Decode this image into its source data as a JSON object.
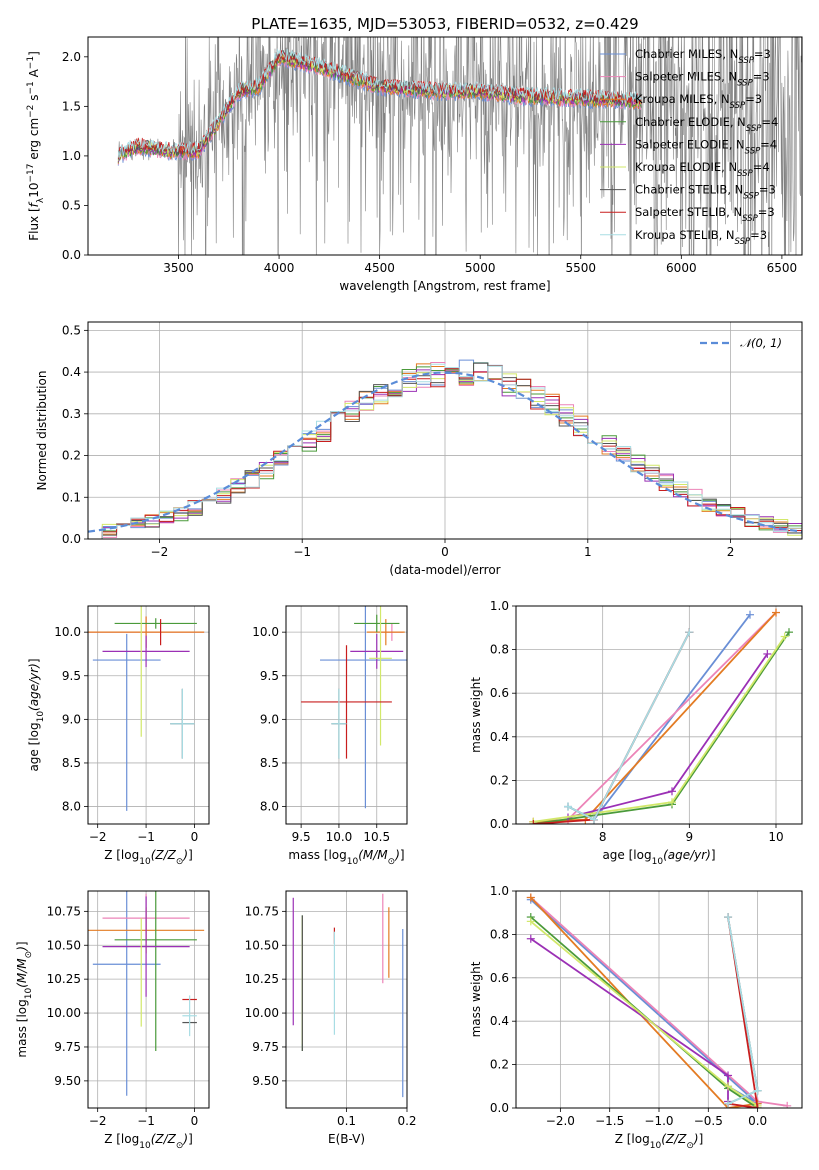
{
  "figure_title": "PLATE=1635, MJD=53053, FIBERID=0532, z=0.429",
  "series": [
    {
      "name": "Chabrier MILES",
      "nssp": "3",
      "color": "#6a8fd6"
    },
    {
      "name": "Salpeter MILES",
      "nssp": "3",
      "color": "#ec84b8"
    },
    {
      "name": "Kroupa MILES",
      "nssp": "3",
      "color": "#e37b23"
    },
    {
      "name": "Chabrier ELODIE",
      "nssp": "4",
      "color": "#4a9a3a"
    },
    {
      "name": "Salpeter ELODIE",
      "nssp": "4",
      "color": "#9b30b5"
    },
    {
      "name": "Kroupa ELODIE",
      "nssp": "4",
      "color": "#d2e86a"
    },
    {
      "name": "Chabrier STELIB",
      "nssp": "3",
      "color": "#555555"
    },
    {
      "name": "Salpeter STELIB",
      "nssp": "3",
      "color": "#c81e1e"
    },
    {
      "name": "Kroupa STELIB",
      "nssp": "3",
      "color": "#a8dde4"
    }
  ],
  "chart_data": [
    {
      "id": "spectrum",
      "type": "line",
      "xlabel": "wavelength [Angstrom, rest frame]",
      "ylabel": "Flux [f_λ 10^-17 erg cm^-2 s^-1 A^-1]",
      "xlim": [
        3050,
        6600
      ],
      "ylim": [
        0,
        2.2
      ],
      "xticks": [
        3500,
        4000,
        4500,
        5000,
        5500,
        6000,
        6500
      ],
      "yticks": [
        0.0,
        0.5,
        1.0,
        1.5,
        2.0
      ],
      "data_color": "#808080",
      "data_x_range": [
        3200,
        6600
      ],
      "model_continuum_approx": [
        [
          3200,
          1.0
        ],
        [
          3300,
          1.1
        ],
        [
          3450,
          1.05
        ],
        [
          3600,
          1.05
        ],
        [
          3700,
          1.35
        ],
        [
          3800,
          1.65
        ],
        [
          3900,
          1.7
        ],
        [
          4000,
          2.0
        ],
        [
          4200,
          1.9
        ],
        [
          4500,
          1.7
        ],
        [
          4800,
          1.65
        ],
        [
          5000,
          1.65
        ],
        [
          5200,
          1.6
        ],
        [
          5500,
          1.58
        ],
        [
          5800,
          1.55
        ],
        [
          6000,
          1.52
        ]
      ],
      "grid": false,
      "legend": "upper-right"
    },
    {
      "id": "residual_hist",
      "type": "histogram",
      "xlabel": "(data-model)/error",
      "ylabel": "Normed distribution",
      "xlim": [
        -2.5,
        2.5
      ],
      "ylim": [
        0,
        0.52
      ],
      "xticks": [
        -2,
        -1,
        0,
        1,
        2
      ],
      "yticks": [
        0.0,
        0.1,
        0.2,
        0.3,
        0.4,
        0.5
      ],
      "bin_edges_start": -2.5,
      "bin_width": 0.1,
      "reference_curve": {
        "name": "N(0,1)",
        "style": "dashed",
        "color": "#5a8cd8"
      },
      "grid": true,
      "legend": "upper-right"
    },
    {
      "id": "age_vs_Z",
      "type": "errorbar",
      "xlabel": "Z [log10(Z/Z☉)]",
      "ylabel": "age [log10(age/yr)]",
      "xlim": [
        -2.2,
        0.3
      ],
      "ylim": [
        7.8,
        10.3
      ],
      "xticks": [
        -2,
        -1,
        0
      ],
      "yticks": [
        8.0,
        8.5,
        9.0,
        9.5,
        10.0
      ],
      "points": [
        {
          "s": 0,
          "x": -1.4,
          "y": 9.68,
          "xerr": 0.7,
          "yerr": 0.3,
          "ylow": 7.95
        },
        {
          "s": 1,
          "x": -1.0,
          "y": 10.0,
          "xerr": 1.2,
          "yerr": 0.18
        },
        {
          "s": 2,
          "x": -1.0,
          "y": 10.0,
          "xerr": 1.2,
          "yerr": 0.18
        },
        {
          "s": 3,
          "x": -0.8,
          "y": 10.1,
          "xerr": 0.85,
          "yerr": 0.06
        },
        {
          "s": 4,
          "x": -1.0,
          "y": 9.78,
          "xerr": 0.9,
          "yerr": 0.18
        },
        {
          "s": 5,
          "x": -1.1,
          "y": 9.8,
          "xerr": 0.0,
          "yerr": 1.0
        },
        {
          "s": 6,
          "x": -0.25,
          "y": 8.95,
          "xerr": 0.25,
          "yerr": 0.4
        },
        {
          "s": 7,
          "x": -0.7,
          "y": 10.0,
          "xerr": 0.0,
          "yerr": 0.15
        },
        {
          "s": 8,
          "x": -0.25,
          "y": 8.95,
          "xerr": 0.25,
          "yerr": 0.4
        }
      ]
    },
    {
      "id": "age_vs_mass",
      "type": "errorbar",
      "xlabel": "mass [log10(M/M☉)]",
      "ylabel": "",
      "xlim": [
        9.3,
        10.9
      ],
      "ylim": [
        7.8,
        10.3
      ],
      "xticks": [
        9.5,
        10.0,
        10.5
      ],
      "yticks": [
        8.0,
        8.5,
        9.0,
        9.5,
        10.0
      ],
      "points": [
        {
          "s": 0,
          "x": 10.35,
          "y": 9.68,
          "xerr": 0.6,
          "yerr": 1.7
        },
        {
          "s": 1,
          "x": 10.7,
          "y": 10.0,
          "xerr": 0.15,
          "yerr": 0.1
        },
        {
          "s": 2,
          "x": 10.62,
          "y": 10.0,
          "xerr": 0.25,
          "yerr": 0.15
        },
        {
          "s": 3,
          "x": 10.5,
          "y": 10.1,
          "xerr": 0.3,
          "yerr": 0.1
        },
        {
          "s": 4,
          "x": 10.5,
          "y": 9.78,
          "xerr": 0.35,
          "yerr": 0.2
        },
        {
          "s": 5,
          "x": 10.55,
          "y": 9.7,
          "xerr": 0.15,
          "yerr": 1.0
        },
        {
          "s": 6,
          "x": 10.0,
          "y": 8.95,
          "xerr": 0.1,
          "yerr": 0.4
        },
        {
          "s": 7,
          "x": 10.1,
          "y": 9.2,
          "xerr": 0.6,
          "yerr": 0.65
        },
        {
          "s": 8,
          "x": 10.0,
          "y": 8.95,
          "xerr": 0.1,
          "yerr": 0.4
        }
      ]
    },
    {
      "id": "massweight_vs_age",
      "type": "line",
      "xlabel": "age [log10(age/yr)]",
      "ylabel": "mass weight",
      "xlim": [
        7.0,
        10.3
      ],
      "ylim": [
        0,
        1.0
      ],
      "xticks": [
        8,
        9,
        10
      ],
      "yticks": [
        0.0,
        0.2,
        0.4,
        0.6,
        0.8,
        1.0
      ],
      "lines": [
        {
          "s": 0,
          "x": [
            7.6,
            7.9,
            9.7
          ],
          "y": [
            0.08,
            0.02,
            0.96
          ]
        },
        {
          "s": 1,
          "x": [
            7.2,
            7.6,
            10.0
          ],
          "y": [
            0.01,
            0.02,
            0.97
          ]
        },
        {
          "s": 2,
          "x": [
            7.2,
            7.8,
            10.0
          ],
          "y": [
            0.01,
            0.02,
            0.97
          ]
        },
        {
          "s": 3,
          "x": [
            7.2,
            8.8,
            10.15
          ],
          "y": [
            0.0,
            0.09,
            0.88
          ]
        },
        {
          "s": 4,
          "x": [
            7.6,
            8.8,
            9.9
          ],
          "y": [
            0.03,
            0.15,
            0.78
          ]
        },
        {
          "s": 5,
          "x": [
            7.2,
            8.8,
            10.1
          ],
          "y": [
            0.01,
            0.1,
            0.86
          ]
        },
        {
          "s": 6,
          "x": [
            7.6,
            7.9,
            9.0
          ],
          "y": [
            0.08,
            0.02,
            0.88
          ]
        },
        {
          "s": 7,
          "x": [
            7.2,
            7.9,
            9.0
          ],
          "y": [
            0.0,
            0.02,
            0.88
          ]
        },
        {
          "s": 8,
          "x": [
            7.6,
            7.9,
            9.0
          ],
          "y": [
            0.08,
            0.02,
            0.88
          ]
        }
      ]
    },
    {
      "id": "mass_vs_Z",
      "type": "errorbar",
      "xlabel": "Z [log10(Z/Z☉)]",
      "ylabel": "mass [log10(M/M☉)]",
      "xlim": [
        -2.2,
        0.3
      ],
      "ylim": [
        9.3,
        10.9
      ],
      "xticks": [
        -2,
        -1,
        0
      ],
      "yticks": [
        9.5,
        9.75,
        10.0,
        10.25,
        10.5,
        10.75
      ],
      "points": [
        {
          "s": 0,
          "x": -1.4,
          "y": 10.36,
          "xerr": 0.7,
          "yerr": 0.97
        },
        {
          "s": 1,
          "x": -1.0,
          "y": 10.7,
          "xerr": 0.9,
          "yerr": 0.18
        },
        {
          "s": 2,
          "x": -1.0,
          "y": 10.61,
          "xerr": 1.2,
          "yerr": 0.17
        },
        {
          "s": 3,
          "x": -0.8,
          "y": 10.54,
          "xerr": 0.85,
          "yerr": 0.82
        },
        {
          "s": 4,
          "x": -1.0,
          "y": 10.49,
          "xerr": 0.9,
          "yerr": 0.37
        },
        {
          "s": 5,
          "x": -1.1,
          "y": 10.3,
          "xerr": 0.0,
          "yerr": 0.4
        },
        {
          "s": 6,
          "x": -0.1,
          "y": 9.93,
          "xerr": 0.15,
          "yerr": 0.0
        },
        {
          "s": 7,
          "x": -0.1,
          "y": 10.1,
          "xerr": 0.15,
          "yerr": 0.0
        },
        {
          "s": 8,
          "x": -0.1,
          "y": 9.98,
          "xerr": 0.15,
          "yerr": 0.15
        }
      ]
    },
    {
      "id": "mass_vs_EBV",
      "type": "errorbar",
      "xlabel": "E(B-V)",
      "ylabel": "",
      "xlim": [
        0.0,
        0.2
      ],
      "ylim": [
        9.3,
        10.9
      ],
      "xticks": [
        0.1,
        0.2
      ],
      "yticks": [
        9.5,
        9.75,
        10.0,
        10.25,
        10.5,
        10.75
      ],
      "points": [
        {
          "s": 0,
          "x": 0.193,
          "y": 10.0,
          "xerr": 0,
          "yerr": 0.62
        },
        {
          "s": 1,
          "x": 0.16,
          "y": 10.55,
          "xerr": 0,
          "yerr": 0.33
        },
        {
          "s": 2,
          "x": 0.17,
          "y": 10.52,
          "xerr": 0,
          "yerr": 0.26
        },
        {
          "s": 3,
          "x": 0.027,
          "y": 10.22,
          "xerr": 0,
          "yerr": 0.5
        },
        {
          "s": 4,
          "x": 0.012,
          "y": 10.38,
          "xerr": 0,
          "yerr": 0.47
        },
        {
          "s": 5,
          "x": 0.027,
          "y": 10.24,
          "xerr": 0,
          "yerr": 0.47
        },
        {
          "s": 6,
          "x": 0.027,
          "y": 10.22,
          "xerr": 0,
          "yerr": 0.5
        },
        {
          "s": 7,
          "x": 0.08,
          "y": 10.57,
          "xerr": 0,
          "yerr": 0.06
        },
        {
          "s": 8,
          "x": 0.08,
          "y": 10.22,
          "xerr": 0,
          "yerr": 0.38
        }
      ]
    },
    {
      "id": "massweight_vs_Z",
      "type": "line",
      "xlabel": "Z [log10(Z/Z☉)]",
      "ylabel": "mass weight",
      "xlim": [
        -2.45,
        0.45
      ],
      "ylim": [
        0,
        1.0
      ],
      "xticks": [
        -2.0,
        -1.5,
        -1.0,
        -0.5,
        0.0
      ],
      "yticks": [
        0.0,
        0.2,
        0.4,
        0.6,
        0.8,
        1.0
      ],
      "lines": [
        {
          "s": 0,
          "x": [
            -2.3,
            0.0,
            -0.3
          ],
          "y": [
            0.96,
            0.02,
            0.1
          ]
        },
        {
          "s": 1,
          "x": [
            -2.3,
            0.0,
            0.3
          ],
          "y": [
            0.97,
            0.03,
            0.01
          ]
        },
        {
          "s": 2,
          "x": [
            -2.3,
            -0.3,
            0.0
          ],
          "y": [
            0.97,
            0.0,
            0.02
          ]
        },
        {
          "s": 3,
          "x": [
            -2.3,
            -0.3,
            0.0
          ],
          "y": [
            0.88,
            0.09,
            0.0
          ]
        },
        {
          "s": 4,
          "x": [
            -2.3,
            -0.3,
            -0.3
          ],
          "y": [
            0.78,
            0.15,
            0.03
          ]
        },
        {
          "s": 5,
          "x": [
            -2.3,
            -0.3,
            0.0
          ],
          "y": [
            0.86,
            0.1,
            0.01
          ]
        },
        {
          "s": 6,
          "x": [
            -0.3,
            0.0,
            -0.3
          ],
          "y": [
            0.88,
            0.08,
            0.02
          ]
        },
        {
          "s": 7,
          "x": [
            -0.3,
            0.0,
            -0.3
          ],
          "y": [
            0.88,
            0.0,
            0.02
          ]
        },
        {
          "s": 8,
          "x": [
            -0.3,
            0.0,
            -0.3
          ],
          "y": [
            0.88,
            0.08,
            0.02
          ]
        }
      ]
    }
  ]
}
